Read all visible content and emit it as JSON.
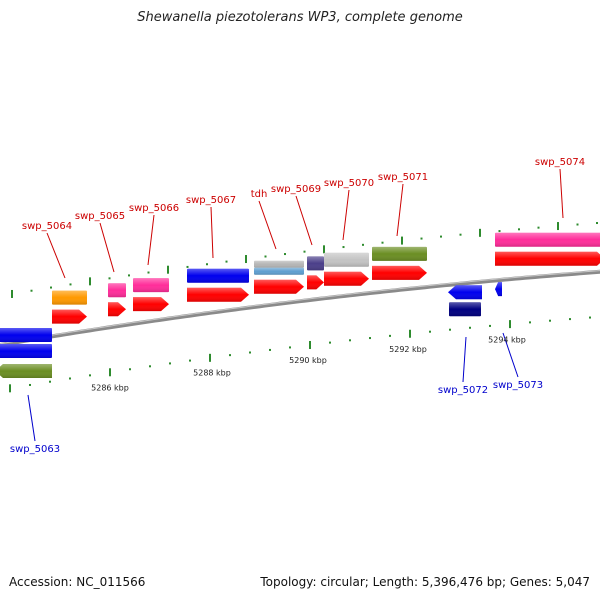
{
  "title": "Shewanella piezotolerans WP3, complete genome",
  "footer": {
    "accession": "Accession: NC_011566",
    "summary": "Topology: circular; Length: 5,396,476 bp; Genes: 5,047"
  },
  "colors": {
    "backbone": "#8a8a8a",
    "tick": "#2e8b2e",
    "forward_label": "#cc0000",
    "reverse_label": "#0000cc",
    "cds": "#ff0000"
  },
  "scale_labels": [
    "5286 kbp",
    "5288 kbp",
    "5290 kbp",
    "5292 kbp",
    "5294 kbp"
  ],
  "genes": [
    {
      "name": "swp_5063",
      "strand": "-",
      "color": "#0000ee"
    },
    {
      "name": "swp_5064",
      "strand": "+",
      "color": "#ff9900"
    },
    {
      "name": "swp_5065",
      "strand": "+",
      "color": "#ff2d9a"
    },
    {
      "name": "swp_5066",
      "strand": "+",
      "color": "#ff2d9a"
    },
    {
      "name": "swp_5067",
      "strand": "+",
      "color": "#0000ee"
    },
    {
      "name": "tdh",
      "strand": "+",
      "color": "#5f9fd0"
    },
    {
      "name": "swp_5069",
      "strand": "+",
      "color": "#4b3f8a"
    },
    {
      "name": "swp_5070",
      "strand": "+",
      "color": "#c4c4c4"
    },
    {
      "name": "swp_5071",
      "strand": "+",
      "color": "#6b8e23"
    },
    {
      "name": "swp_5072",
      "strand": "-",
      "color": "#0000ee"
    },
    {
      "name": "swp_5073",
      "strand": "-",
      "color": "#0000ee"
    },
    {
      "name": "swp_5074",
      "strand": "+",
      "color": "#ff2d9a"
    }
  ]
}
